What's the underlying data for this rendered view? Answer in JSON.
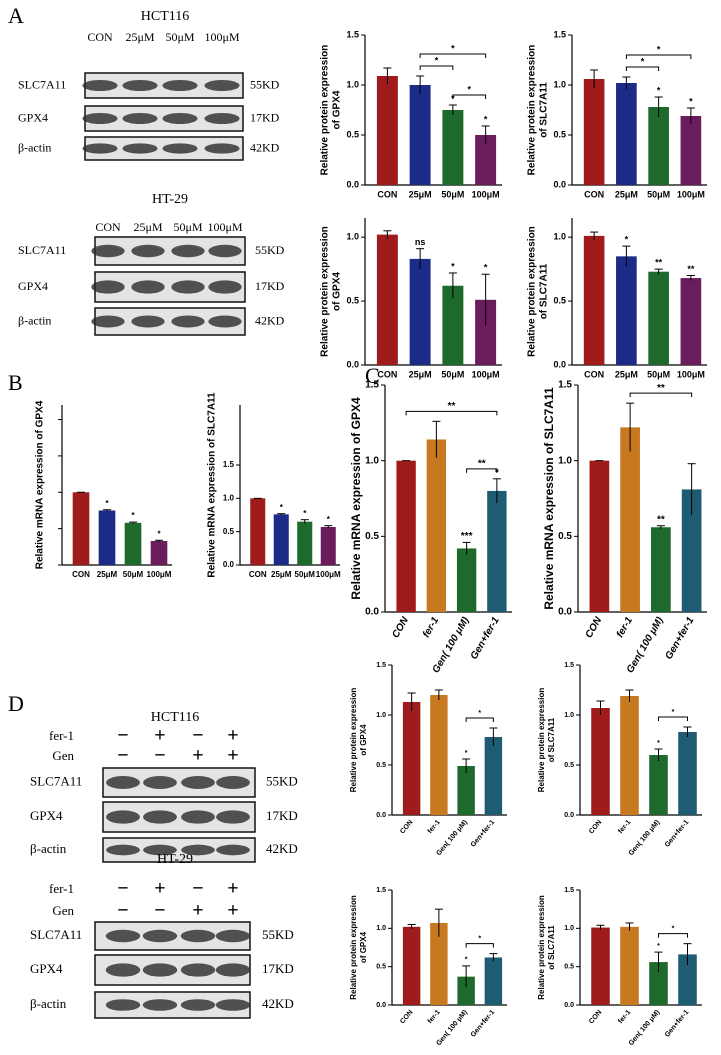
{
  "panel_labels": [
    "A",
    "B",
    "C",
    "D"
  ],
  "blots": [
    {
      "title": "HCT116",
      "columns": [
        "CON",
        "25μM",
        "50μM",
        "100μM"
      ],
      "rows": [
        {
          "name": "SLC7A11",
          "size": "55KD"
        },
        {
          "name": "GPX4",
          "size": "17KD"
        },
        {
          "name": "β-actin",
          "size": "42KD"
        }
      ]
    },
    {
      "title": "HT-29",
      "columns": [
        "CON",
        "25μM",
        "50μM",
        "100μM"
      ],
      "rows": [
        {
          "name": "SLC7A11",
          "size": "55KD"
        },
        {
          "name": "GPX4",
          "size": "17KD"
        },
        {
          "name": "β-actin",
          "size": "42KD"
        }
      ]
    },
    {
      "title": "HCT116",
      "treatments": [
        {
          "name": "fer-1",
          "signs": [
            "−",
            "+",
            "−",
            "+"
          ]
        },
        {
          "name": "Gen",
          "signs": [
            "−",
            "−",
            "+",
            "+"
          ]
        }
      ],
      "rows": [
        {
          "name": "SLC7A11",
          "size": "55KD"
        },
        {
          "name": "GPX4",
          "size": "17KD"
        },
        {
          "name": "β-actin",
          "size": "42KD"
        }
      ]
    },
    {
      "title": "HT-29",
      "treatments": [
        {
          "name": "fer-1",
          "signs": [
            "−",
            "+",
            "−",
            "+"
          ]
        },
        {
          "name": "Gen",
          "signs": [
            "−",
            "−",
            "+",
            "+"
          ]
        }
      ],
      "rows": [
        {
          "name": "SLC7A11",
          "size": "55KD"
        },
        {
          "name": "GPX4",
          "size": "17KD"
        },
        {
          "name": "β-actin",
          "size": "42KD"
        }
      ]
    }
  ],
  "chart_data": [
    {
      "type": "bar",
      "ylabel": [
        "Relative protein expression",
        "of GPX4"
      ],
      "categories": [
        "CON",
        "25μM",
        "50μM",
        "100μM"
      ],
      "values": [
        1.09,
        1.0,
        0.75,
        0.5
      ],
      "errors": [
        0.08,
        0.09,
        0.05,
        0.09
      ],
      "colors": [
        "#a01c1c",
        "#1c2a88",
        "#1e6a2c",
        "#6a1c5c"
      ],
      "significance": [
        null,
        null,
        "*",
        "*"
      ],
      "brackets": [
        {
          "between": [
            "50μM",
            "100μM"
          ],
          "label": "*"
        },
        {
          "between": [
            "25μM",
            "50μM"
          ],
          "label": "*"
        },
        {
          "between": [
            "25μM",
            "100μM"
          ],
          "label": "*"
        }
      ],
      "ylim": [
        0,
        1.5
      ],
      "yticks": [
        {
          "value": 0,
          "label": "0.0"
        },
        {
          "value": 0.5,
          "label": "0.5"
        },
        {
          "value": 1,
          "label": "1.0"
        },
        {
          "value": 1.5,
          "label": "1.5"
        }
      ],
      "tick_labels": true
    },
    {
      "type": "bar",
      "ylabel": [
        "Relative protein expression",
        "of SLC7A11"
      ],
      "categories": [
        "CON",
        "25μM",
        "50μM",
        "100μM"
      ],
      "values": [
        1.06,
        1.02,
        0.78,
        0.69
      ],
      "errors": [
        0.09,
        0.06,
        0.1,
        0.08
      ],
      "colors": [
        "#a01c1c",
        "#1c2a88",
        "#1e6a2c",
        "#6a1c5c"
      ],
      "significance": [
        null,
        null,
        "*",
        "*"
      ],
      "brackets": [
        {
          "between": [
            "25μM",
            "50μM"
          ],
          "label": "*"
        },
        {
          "between": [
            "25μM",
            "100μM"
          ],
          "label": "*"
        }
      ],
      "ylim": [
        0,
        1.5
      ],
      "yticks": [
        {
          "value": 0,
          "label": "0.0"
        },
        {
          "value": 0.5,
          "label": "0.5"
        },
        {
          "value": 1,
          "label": "1.0"
        },
        {
          "value": 1.5,
          "label": "1.5"
        }
      ],
      "tick_labels": true
    },
    {
      "type": "bar",
      "ylabel": [
        "Relative protein expression",
        "of GPX4"
      ],
      "categories": [
        "CON",
        "25μM",
        "50μM",
        "100μM"
      ],
      "values": [
        1.02,
        0.83,
        0.62,
        0.51
      ],
      "errors": [
        0.03,
        0.08,
        0.1,
        0.2
      ],
      "colors": [
        "#a01c1c",
        "#1c2a88",
        "#1e6a2c",
        "#6a1c5c"
      ],
      "significance": [
        null,
        "ns",
        "*",
        "*"
      ],
      "brackets": [],
      "ylim": [
        0,
        1.15
      ],
      "yticks": [
        {
          "value": 0,
          "label": "0.0"
        },
        {
          "value": 0.5,
          "label": "0.5"
        },
        {
          "value": 1,
          "label": "1.0"
        }
      ],
      "tick_labels": true
    },
    {
      "type": "bar",
      "ylabel": [
        "Relative protein expression",
        "of SLC7A11"
      ],
      "categories": [
        "CON",
        "25μM",
        "50μM",
        "100μM"
      ],
      "values": [
        1.01,
        0.85,
        0.73,
        0.68
      ],
      "errors": [
        0.03,
        0.08,
        0.02,
        0.02
      ],
      "colors": [
        "#a01c1c",
        "#1c2a88",
        "#1e6a2c",
        "#6a1c5c"
      ],
      "significance": [
        null,
        "*",
        "**",
        "**"
      ],
      "brackets": [],
      "ylim": [
        0,
        1.15
      ],
      "yticks": [
        {
          "value": 0,
          "label": "0.0"
        },
        {
          "value": 0.5,
          "label": "0.5"
        },
        {
          "value": 1,
          "label": "1.0"
        }
      ],
      "tick_labels": true
    },
    {
      "type": "bar",
      "ylabel": [
        "Relative mRNA expression of GPX4"
      ],
      "categories": [
        "CON",
        "25μM",
        "50μM",
        "100μM"
      ],
      "values": [
        1.0,
        0.75,
        0.58,
        0.33
      ],
      "errors": [
        0,
        0.01,
        0.01,
        0.01
      ],
      "colors": [
        "#a01c1c",
        "#1c2a88",
        "#1e6a2c",
        "#6a1c5c"
      ],
      "significance": [
        null,
        "*",
        "*",
        "*"
      ],
      "brackets": [],
      "ylim": [
        0,
        2.2
      ],
      "yticks": [
        0,
        0.5,
        1,
        1.5,
        2
      ],
      "tick_labels": false
    },
    {
      "type": "bar",
      "ylabel": [
        "Relative mRNA expression of SLC7A11"
      ],
      "categories": [
        "CON",
        "25μM",
        "50μM",
        "100μM"
      ],
      "values": [
        1.0,
        0.76,
        0.65,
        0.57
      ],
      "errors": [
        0,
        0.01,
        0.03,
        0.02
      ],
      "colors": [
        "#a01c1c",
        "#1c2a88",
        "#1e6a2c",
        "#6a1c5c"
      ],
      "significance": [
        null,
        "*",
        "*",
        "*"
      ],
      "brackets": [],
      "ylim": [
        0,
        2.4
      ],
      "yticks": [
        {
          "value": 0,
          "label": "0.0"
        },
        {
          "value": 0.5,
          "label": "0.5"
        },
        {
          "value": 1,
          "label": "1.0"
        },
        {
          "value": 1.5,
          "label": "1.5"
        }
      ],
      "tick_labels": true
    },
    {
      "type": "bar",
      "ylabel": [
        "Relative mRNA expression of GPX4"
      ],
      "categories": [
        "CON",
        "fer-1",
        "Gen( 100 μM)",
        "Gen+fer-1"
      ],
      "values": [
        1.0,
        1.14,
        0.42,
        0.8
      ],
      "errors": [
        0,
        0.12,
        0.04,
        0.08
      ],
      "colors": [
        "#a01c1c",
        "#c8781e",
        "#1e6a2c",
        "#1d5c72"
      ],
      "significance": [
        null,
        null,
        "***",
        "*"
      ],
      "brackets": [
        {
          "between": [
            "Gen( 100 μM)",
            "Gen+fer-1"
          ],
          "label": "**"
        },
        {
          "between": [
            "CON",
            "Gen+fer-1"
          ],
          "label": "**"
        }
      ],
      "ylim": [
        0,
        1.5
      ],
      "yticks": [
        {
          "value": 0,
          "label": "0.0"
        },
        {
          "value": 0.5,
          "label": "0.5"
        },
        {
          "value": 1,
          "label": "1.0"
        },
        {
          "value": 1.5,
          "label": "1.5"
        }
      ],
      "tick_labels": true
    },
    {
      "type": "bar",
      "ylabel": [
        "Relative mRNA expression of SLC7A11"
      ],
      "categories": [
        "CON",
        "fer-1",
        "Gen( 100 μM)",
        "Gen+fer-1"
      ],
      "values": [
        1.0,
        1.22,
        0.56,
        0.81
      ],
      "errors": [
        0,
        0.16,
        0.01,
        0.17
      ],
      "colors": [
        "#a01c1c",
        "#c8781e",
        "#1e6a2c",
        "#1d5c72"
      ],
      "significance": [
        null,
        null,
        "**",
        null
      ],
      "brackets": [
        {
          "between": [
            "fer-1",
            "Gen+fer-1"
          ],
          "label": "**"
        }
      ],
      "ylim": [
        0,
        1.5
      ],
      "yticks": [
        {
          "value": 0,
          "label": "0.0"
        },
        {
          "value": 0.5,
          "label": "0.5"
        },
        {
          "value": 1,
          "label": "1.0"
        },
        {
          "value": 1.5,
          "label": "1.5"
        }
      ],
      "tick_labels": true
    },
    {
      "type": "bar",
      "ylabel": [
        "Relative protein expression",
        "of GPX4"
      ],
      "categories": [
        "CON",
        "fer-1",
        "Gen( 100 μM)",
        "Gen+fer-1"
      ],
      "values": [
        1.13,
        1.2,
        0.49,
        0.78
      ],
      "errors": [
        0.09,
        0.05,
        0.07,
        0.09
      ],
      "colors": [
        "#a01c1c",
        "#c8781e",
        "#1e6a2c",
        "#1d5c72"
      ],
      "significance": [
        null,
        null,
        "*",
        null
      ],
      "brackets": [
        {
          "between": [
            "Gen( 100 μM)",
            "Gen+fer-1"
          ],
          "label": "*"
        }
      ],
      "ylim": [
        0,
        1.5
      ],
      "yticks": [
        {
          "value": 0,
          "label": "0.0"
        },
        {
          "value": 0.5,
          "label": "0.5"
        },
        {
          "value": 1,
          "label": "1.0"
        },
        {
          "value": 1.5,
          "label": "1.5"
        }
      ],
      "tick_labels": true
    },
    {
      "type": "bar",
      "ylabel": [
        "Relative protein expression",
        "of SLC7A11"
      ],
      "categories": [
        "CON",
        "fer-1",
        "Gen( 100 μM)",
        "Gen+fer-1"
      ],
      "values": [
        1.07,
        1.19,
        0.6,
        0.83
      ],
      "errors": [
        0.07,
        0.06,
        0.06,
        0.05
      ],
      "colors": [
        "#a01c1c",
        "#c8781e",
        "#1e6a2c",
        "#1d5c72"
      ],
      "significance": [
        null,
        null,
        "*",
        null
      ],
      "brackets": [
        {
          "between": [
            "Gen( 100 μM)",
            "Gen+fer-1"
          ],
          "label": "*"
        }
      ],
      "ylim": [
        0,
        1.5
      ],
      "yticks": [
        {
          "value": 0,
          "label": "0.0"
        },
        {
          "value": 0.5,
          "label": "0.5"
        },
        {
          "value": 1,
          "label": "1.0"
        },
        {
          "value": 1.5,
          "label": "1.5"
        }
      ],
      "tick_labels": true
    },
    {
      "type": "bar",
      "ylabel": [
        "Relative protein expression",
        "of GPX4"
      ],
      "categories": [
        "CON",
        "fer-1",
        "Gen( 100 μM)",
        "Gen+fer-1"
      ],
      "values": [
        1.02,
        1.07,
        0.37,
        0.62
      ],
      "errors": [
        0.03,
        0.18,
        0.14,
        0.05
      ],
      "colors": [
        "#a01c1c",
        "#c8781e",
        "#1e6a2c",
        "#1d5c72"
      ],
      "significance": [
        null,
        null,
        "*",
        null
      ],
      "brackets": [
        {
          "between": [
            "Gen( 100 μM)",
            "Gen+fer-1"
          ],
          "label": "*"
        }
      ],
      "ylim": [
        0,
        1.5
      ],
      "yticks": [
        {
          "value": 0,
          "label": "0.0"
        },
        {
          "value": 0.5,
          "label": "0.5"
        },
        {
          "value": 1,
          "label": "1.0"
        },
        {
          "value": 1.5,
          "label": "1.5"
        }
      ],
      "tick_labels": true
    },
    {
      "type": "bar",
      "ylabel": [
        "Relative protein expression",
        "of SLC7A11"
      ],
      "categories": [
        "CON",
        "fer-1",
        "Gen( 100 μM)",
        "Gen+fer-1"
      ],
      "values": [
        1.01,
        1.02,
        0.56,
        0.66
      ],
      "errors": [
        0.03,
        0.05,
        0.13,
        0.14
      ],
      "colors": [
        "#a01c1c",
        "#c8781e",
        "#1e6a2c",
        "#1d5c72"
      ],
      "significance": [
        null,
        null,
        "*",
        null
      ],
      "brackets": [
        {
          "between": [
            "Gen( 100 μM)",
            "Gen+fer-1"
          ],
          "label": "*"
        }
      ],
      "ylim": [
        0,
        1.5
      ],
      "yticks": [
        {
          "value": 0,
          "label": "0.0"
        },
        {
          "value": 0.5,
          "label": "0.5"
        },
        {
          "value": 1,
          "label": "1.0"
        },
        {
          "value": 1.5,
          "label": "1.5"
        }
      ],
      "tick_labels": true
    }
  ]
}
